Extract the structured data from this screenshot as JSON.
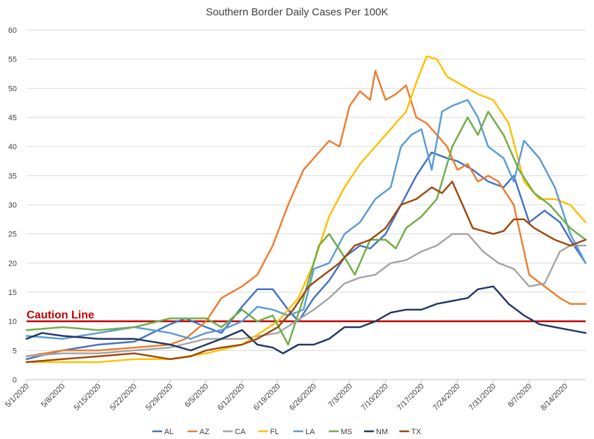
{
  "chart_data": {
    "type": "line",
    "title": "Southern Border Daily Cases Per 100K",
    "xlabel": "",
    "ylabel": "",
    "ylim": [
      0,
      60
    ],
    "yticks": [
      "0",
      "5",
      "10",
      "15",
      "20",
      "25",
      "30",
      "35",
      "40",
      "45",
      "50",
      "55",
      "60"
    ],
    "grid": "horizontal",
    "legend_position": "bottom",
    "x_tick_labels": [
      "5/1/2020",
      "5/8/2020",
      "5/15/2020",
      "5/22/2020",
      "5/29/2020",
      "6/5/2020",
      "6/12/2020",
      "6/19/2020",
      "6/26/2020",
      "7/3/2020",
      "7/10/2020",
      "7/17/2020",
      "7/24/2020",
      "7/31/2020",
      "8/7/2020",
      "8/14/2020"
    ],
    "x_start": "5/1/2020",
    "x_end": "8/18/2020",
    "reference_line": {
      "label": "Caution Line",
      "value": 10,
      "color": "#c00000"
    },
    "series": [
      {
        "name": "AL",
        "color": "#4472c4",
        "points": [
          [
            "5/1/2020",
            3.5
          ],
          [
            "5/8/2020",
            5
          ],
          [
            "5/15/2020",
            6
          ],
          [
            "5/22/2020",
            6.5
          ],
          [
            "5/29/2020",
            9.5
          ],
          [
            "6/1/2020",
            10.5
          ],
          [
            "6/5/2020",
            9
          ],
          [
            "6/8/2020",
            8
          ],
          [
            "6/12/2020",
            12.5
          ],
          [
            "6/15/2020",
            15.5
          ],
          [
            "6/18/2020",
            15.5
          ],
          [
            "6/21/2020",
            12
          ],
          [
            "6/23/2020",
            10
          ],
          [
            "6/26/2020",
            14
          ],
          [
            "6/29/2020",
            17
          ],
          [
            "7/2/2020",
            21
          ],
          [
            "7/5/2020",
            23
          ],
          [
            "7/7/2020",
            22.5
          ],
          [
            "7/10/2020",
            25
          ],
          [
            "7/13/2020",
            30
          ],
          [
            "7/16/2020",
            35
          ],
          [
            "7/19/2020",
            39
          ],
          [
            "7/22/2020",
            38
          ],
          [
            "7/24/2020",
            37.5
          ],
          [
            "7/27/2020",
            36
          ],
          [
            "7/30/2020",
            34
          ],
          [
            "8/2/2020",
            33
          ],
          [
            "8/4/2020",
            35
          ],
          [
            "8/7/2020",
            27
          ],
          [
            "8/10/2020",
            29
          ],
          [
            "8/13/2020",
            27
          ],
          [
            "8/15/2020",
            24
          ],
          [
            "8/18/2020",
            20
          ]
        ]
      },
      {
        "name": "AZ",
        "color": "#ed7d31",
        "points": [
          [
            "5/1/2020",
            4
          ],
          [
            "5/8/2020",
            5
          ],
          [
            "5/15/2020",
            5
          ],
          [
            "5/22/2020",
            5.5
          ],
          [
            "5/29/2020",
            6
          ],
          [
            "6/1/2020",
            7
          ],
          [
            "6/5/2020",
            10
          ],
          [
            "6/8/2020",
            14
          ],
          [
            "6/12/2020",
            16
          ],
          [
            "6/15/2020",
            18
          ],
          [
            "6/18/2020",
            23
          ],
          [
            "6/21/2020",
            30
          ],
          [
            "6/24/2020",
            36
          ],
          [
            "6/26/2020",
            38
          ],
          [
            "6/29/2020",
            41
          ],
          [
            "7/1/2020",
            40
          ],
          [
            "7/3/2020",
            47
          ],
          [
            "7/5/2020",
            49.5
          ],
          [
            "7/7/2020",
            48
          ],
          [
            "7/8/2020",
            53
          ],
          [
            "7/10/2020",
            48
          ],
          [
            "7/12/2020",
            49
          ],
          [
            "7/14/2020",
            50.5
          ],
          [
            "7/16/2020",
            45
          ],
          [
            "7/18/2020",
            44
          ],
          [
            "7/20/2020",
            42
          ],
          [
            "7/22/2020",
            40
          ],
          [
            "7/24/2020",
            36
          ],
          [
            "7/26/2020",
            37
          ],
          [
            "7/28/2020",
            34
          ],
          [
            "7/30/2020",
            35
          ],
          [
            "8/1/2020",
            34
          ],
          [
            "8/4/2020",
            30
          ],
          [
            "8/7/2020",
            18
          ],
          [
            "8/10/2020",
            16
          ],
          [
            "8/13/2020",
            14
          ],
          [
            "8/15/2020",
            13
          ],
          [
            "8/18/2020",
            13
          ]
        ]
      },
      {
        "name": "CA",
        "color": "#a5a5a5",
        "points": [
          [
            "5/1/2020",
            4
          ],
          [
            "5/8/2020",
            4.5
          ],
          [
            "5/15/2020",
            4.5
          ],
          [
            "5/22/2020",
            5
          ],
          [
            "5/29/2020",
            5.5
          ],
          [
            "6/5/2020",
            7
          ],
          [
            "6/12/2020",
            7
          ],
          [
            "6/19/2020",
            8
          ],
          [
            "6/26/2020",
            12
          ],
          [
            "6/29/2020",
            14
          ],
          [
            "7/2/2020",
            16.5
          ],
          [
            "7/5/2020",
            17.5
          ],
          [
            "7/8/2020",
            18
          ],
          [
            "7/11/2020",
            20
          ],
          [
            "7/14/2020",
            20.5
          ],
          [
            "7/17/2020",
            22
          ],
          [
            "7/20/2020",
            23
          ],
          [
            "7/23/2020",
            25
          ],
          [
            "7/26/2020",
            25
          ],
          [
            "7/29/2020",
            22
          ],
          [
            "8/1/2020",
            20
          ],
          [
            "8/4/2020",
            19
          ],
          [
            "8/7/2020",
            16
          ],
          [
            "8/10/2020",
            16.5
          ],
          [
            "8/13/2020",
            22
          ],
          [
            "8/15/2020",
            23
          ],
          [
            "8/18/2020",
            23
          ]
        ]
      },
      {
        "name": "FL",
        "color": "#ffc000",
        "points": [
          [
            "5/1/2020",
            3
          ],
          [
            "5/8/2020",
            3
          ],
          [
            "5/15/2020",
            3
          ],
          [
            "5/22/2020",
            3.5
          ],
          [
            "5/29/2020",
            3.5
          ],
          [
            "6/5/2020",
            4.5
          ],
          [
            "6/12/2020",
            6
          ],
          [
            "6/19/2020",
            10
          ],
          [
            "6/23/2020",
            14
          ],
          [
            "6/26/2020",
            20
          ],
          [
            "6/29/2020",
            28
          ],
          [
            "7/2/2020",
            33
          ],
          [
            "7/5/2020",
            37
          ],
          [
            "7/8/2020",
            40
          ],
          [
            "7/11/2020",
            43
          ],
          [
            "7/14/2020",
            46
          ],
          [
            "7/16/2020",
            51
          ],
          [
            "7/18/2020",
            55.5
          ],
          [
            "7/20/2020",
            55
          ],
          [
            "7/22/2020",
            52
          ],
          [
            "7/24/2020",
            51
          ],
          [
            "7/26/2020",
            50
          ],
          [
            "7/28/2020",
            49
          ],
          [
            "7/31/2020",
            48
          ],
          [
            "8/3/2020",
            44
          ],
          [
            "8/6/2020",
            34
          ],
          [
            "8/9/2020",
            31
          ],
          [
            "8/12/2020",
            31
          ],
          [
            "8/15/2020",
            30
          ],
          [
            "8/18/2020",
            27
          ]
        ]
      },
      {
        "name": "LA",
        "color": "#5b9bd5",
        "points": [
          [
            "5/1/2020",
            7.5
          ],
          [
            "5/8/2020",
            7
          ],
          [
            "5/15/2020",
            8
          ],
          [
            "5/22/2020",
            9
          ],
          [
            "5/29/2020",
            8
          ],
          [
            "6/2/2020",
            7
          ],
          [
            "6/5/2020",
            8
          ],
          [
            "6/8/2020",
            8.5
          ],
          [
            "6/12/2020",
            10
          ],
          [
            "6/15/2020",
            12.5
          ],
          [
            "6/18/2020",
            12
          ],
          [
            "6/21/2020",
            11
          ],
          [
            "6/24/2020",
            12
          ],
          [
            "6/26/2020",
            19
          ],
          [
            "6/29/2020",
            20
          ],
          [
            "7/2/2020",
            25
          ],
          [
            "7/5/2020",
            27
          ],
          [
            "7/8/2020",
            31
          ],
          [
            "7/11/2020",
            33
          ],
          [
            "7/13/2020",
            40
          ],
          [
            "7/15/2020",
            42
          ],
          [
            "7/17/2020",
            43
          ],
          [
            "7/19/2020",
            36
          ],
          [
            "7/21/2020",
            46
          ],
          [
            "7/23/2020",
            47
          ],
          [
            "7/26/2020",
            48
          ],
          [
            "7/28/2020",
            45
          ],
          [
            "7/30/2020",
            40
          ],
          [
            "8/2/2020",
            38
          ],
          [
            "8/4/2020",
            34
          ],
          [
            "8/6/2020",
            41
          ],
          [
            "8/9/2020",
            38
          ],
          [
            "8/12/2020",
            33
          ],
          [
            "8/15/2020",
            25
          ],
          [
            "8/18/2020",
            20
          ]
        ]
      },
      {
        "name": "MS",
        "color": "#70ad47",
        "points": [
          [
            "5/1/2020",
            8.5
          ],
          [
            "5/8/2020",
            9
          ],
          [
            "5/15/2020",
            8.5
          ],
          [
            "5/22/2020",
            9
          ],
          [
            "5/29/2020",
            10.5
          ],
          [
            "6/5/2020",
            10.5
          ],
          [
            "6/8/2020",
            9
          ],
          [
            "6/12/2020",
            12
          ],
          [
            "6/15/2020",
            10
          ],
          [
            "6/18/2020",
            11
          ],
          [
            "6/21/2020",
            6
          ],
          [
            "6/24/2020",
            14
          ],
          [
            "6/27/2020",
            23
          ],
          [
            "6/29/2020",
            25
          ],
          [
            "7/2/2020",
            21
          ],
          [
            "7/4/2020",
            18
          ],
          [
            "7/7/2020",
            24
          ],
          [
            "7/10/2020",
            24
          ],
          [
            "7/12/2020",
            22.5
          ],
          [
            "7/14/2020",
            26
          ],
          [
            "7/17/2020",
            28
          ],
          [
            "7/20/2020",
            31
          ],
          [
            "7/23/2020",
            40
          ],
          [
            "7/26/2020",
            45
          ],
          [
            "7/28/2020",
            42
          ],
          [
            "7/30/2020",
            46
          ],
          [
            "8/2/2020",
            42
          ],
          [
            "8/5/2020",
            36
          ],
          [
            "8/8/2020",
            32
          ],
          [
            "8/11/2020",
            30
          ],
          [
            "8/15/2020",
            26
          ],
          [
            "8/18/2020",
            24
          ]
        ]
      },
      {
        "name": "NM",
        "color": "#203864",
        "points": [
          [
            "5/1/2020",
            7
          ],
          [
            "5/4/2020",
            8
          ],
          [
            "5/8/2020",
            7.5
          ],
          [
            "5/15/2020",
            7
          ],
          [
            "5/22/2020",
            7
          ],
          [
            "5/29/2020",
            6
          ],
          [
            "6/2/2020",
            5
          ],
          [
            "6/5/2020",
            6
          ],
          [
            "6/8/2020",
            7
          ],
          [
            "6/12/2020",
            8.5
          ],
          [
            "6/15/2020",
            6
          ],
          [
            "6/18/2020",
            5.5
          ],
          [
            "6/20/2020",
            4.5
          ],
          [
            "6/23/2020",
            6
          ],
          [
            "6/26/2020",
            6
          ],
          [
            "6/29/2020",
            7
          ],
          [
            "7/2/2020",
            9
          ],
          [
            "7/5/2020",
            9
          ],
          [
            "7/8/2020",
            10
          ],
          [
            "7/11/2020",
            11.5
          ],
          [
            "7/14/2020",
            12
          ],
          [
            "7/17/2020",
            12
          ],
          [
            "7/20/2020",
            13
          ],
          [
            "7/23/2020",
            13.5
          ],
          [
            "7/26/2020",
            14
          ],
          [
            "7/28/2020",
            15.5
          ],
          [
            "7/31/2020",
            16
          ],
          [
            "8/3/2020",
            13
          ],
          [
            "8/6/2020",
            11
          ],
          [
            "8/9/2020",
            9.5
          ],
          [
            "8/12/2020",
            9
          ],
          [
            "8/15/2020",
            8.5
          ],
          [
            "8/18/2020",
            8
          ]
        ]
      },
      {
        "name": "TX",
        "color": "#9e480e",
        "points": [
          [
            "5/1/2020",
            3
          ],
          [
            "5/8/2020",
            3.5
          ],
          [
            "5/15/2020",
            4
          ],
          [
            "5/22/2020",
            4.5
          ],
          [
            "5/29/2020",
            3.5
          ],
          [
            "6/2/2020",
            4
          ],
          [
            "6/5/2020",
            5
          ],
          [
            "6/8/2020",
            5.5
          ],
          [
            "6/12/2020",
            6
          ],
          [
            "6/15/2020",
            7
          ],
          [
            "6/19/2020",
            9
          ],
          [
            "6/22/2020",
            12
          ],
          [
            "6/25/2020",
            16
          ],
          [
            "6/28/2020",
            18
          ],
          [
            "7/1/2020",
            20
          ],
          [
            "7/4/2020",
            23
          ],
          [
            "7/7/2020",
            24
          ],
          [
            "7/10/2020",
            26
          ],
          [
            "7/13/2020",
            30
          ],
          [
            "7/16/2020",
            31
          ],
          [
            "7/19/2020",
            33
          ],
          [
            "7/21/2020",
            32
          ],
          [
            "7/23/2020",
            34
          ],
          [
            "7/25/2020",
            30
          ],
          [
            "7/27/2020",
            26
          ],
          [
            "7/31/2020",
            25
          ],
          [
            "8/2/2020",
            25.5
          ],
          [
            "8/4/2020",
            27.5
          ],
          [
            "8/6/2020",
            27.5
          ],
          [
            "8/8/2020",
            26
          ],
          [
            "8/10/2020",
            25
          ],
          [
            "8/12/2020",
            24
          ],
          [
            "8/15/2020",
            23
          ],
          [
            "8/18/2020",
            24
          ]
        ]
      }
    ]
  }
}
